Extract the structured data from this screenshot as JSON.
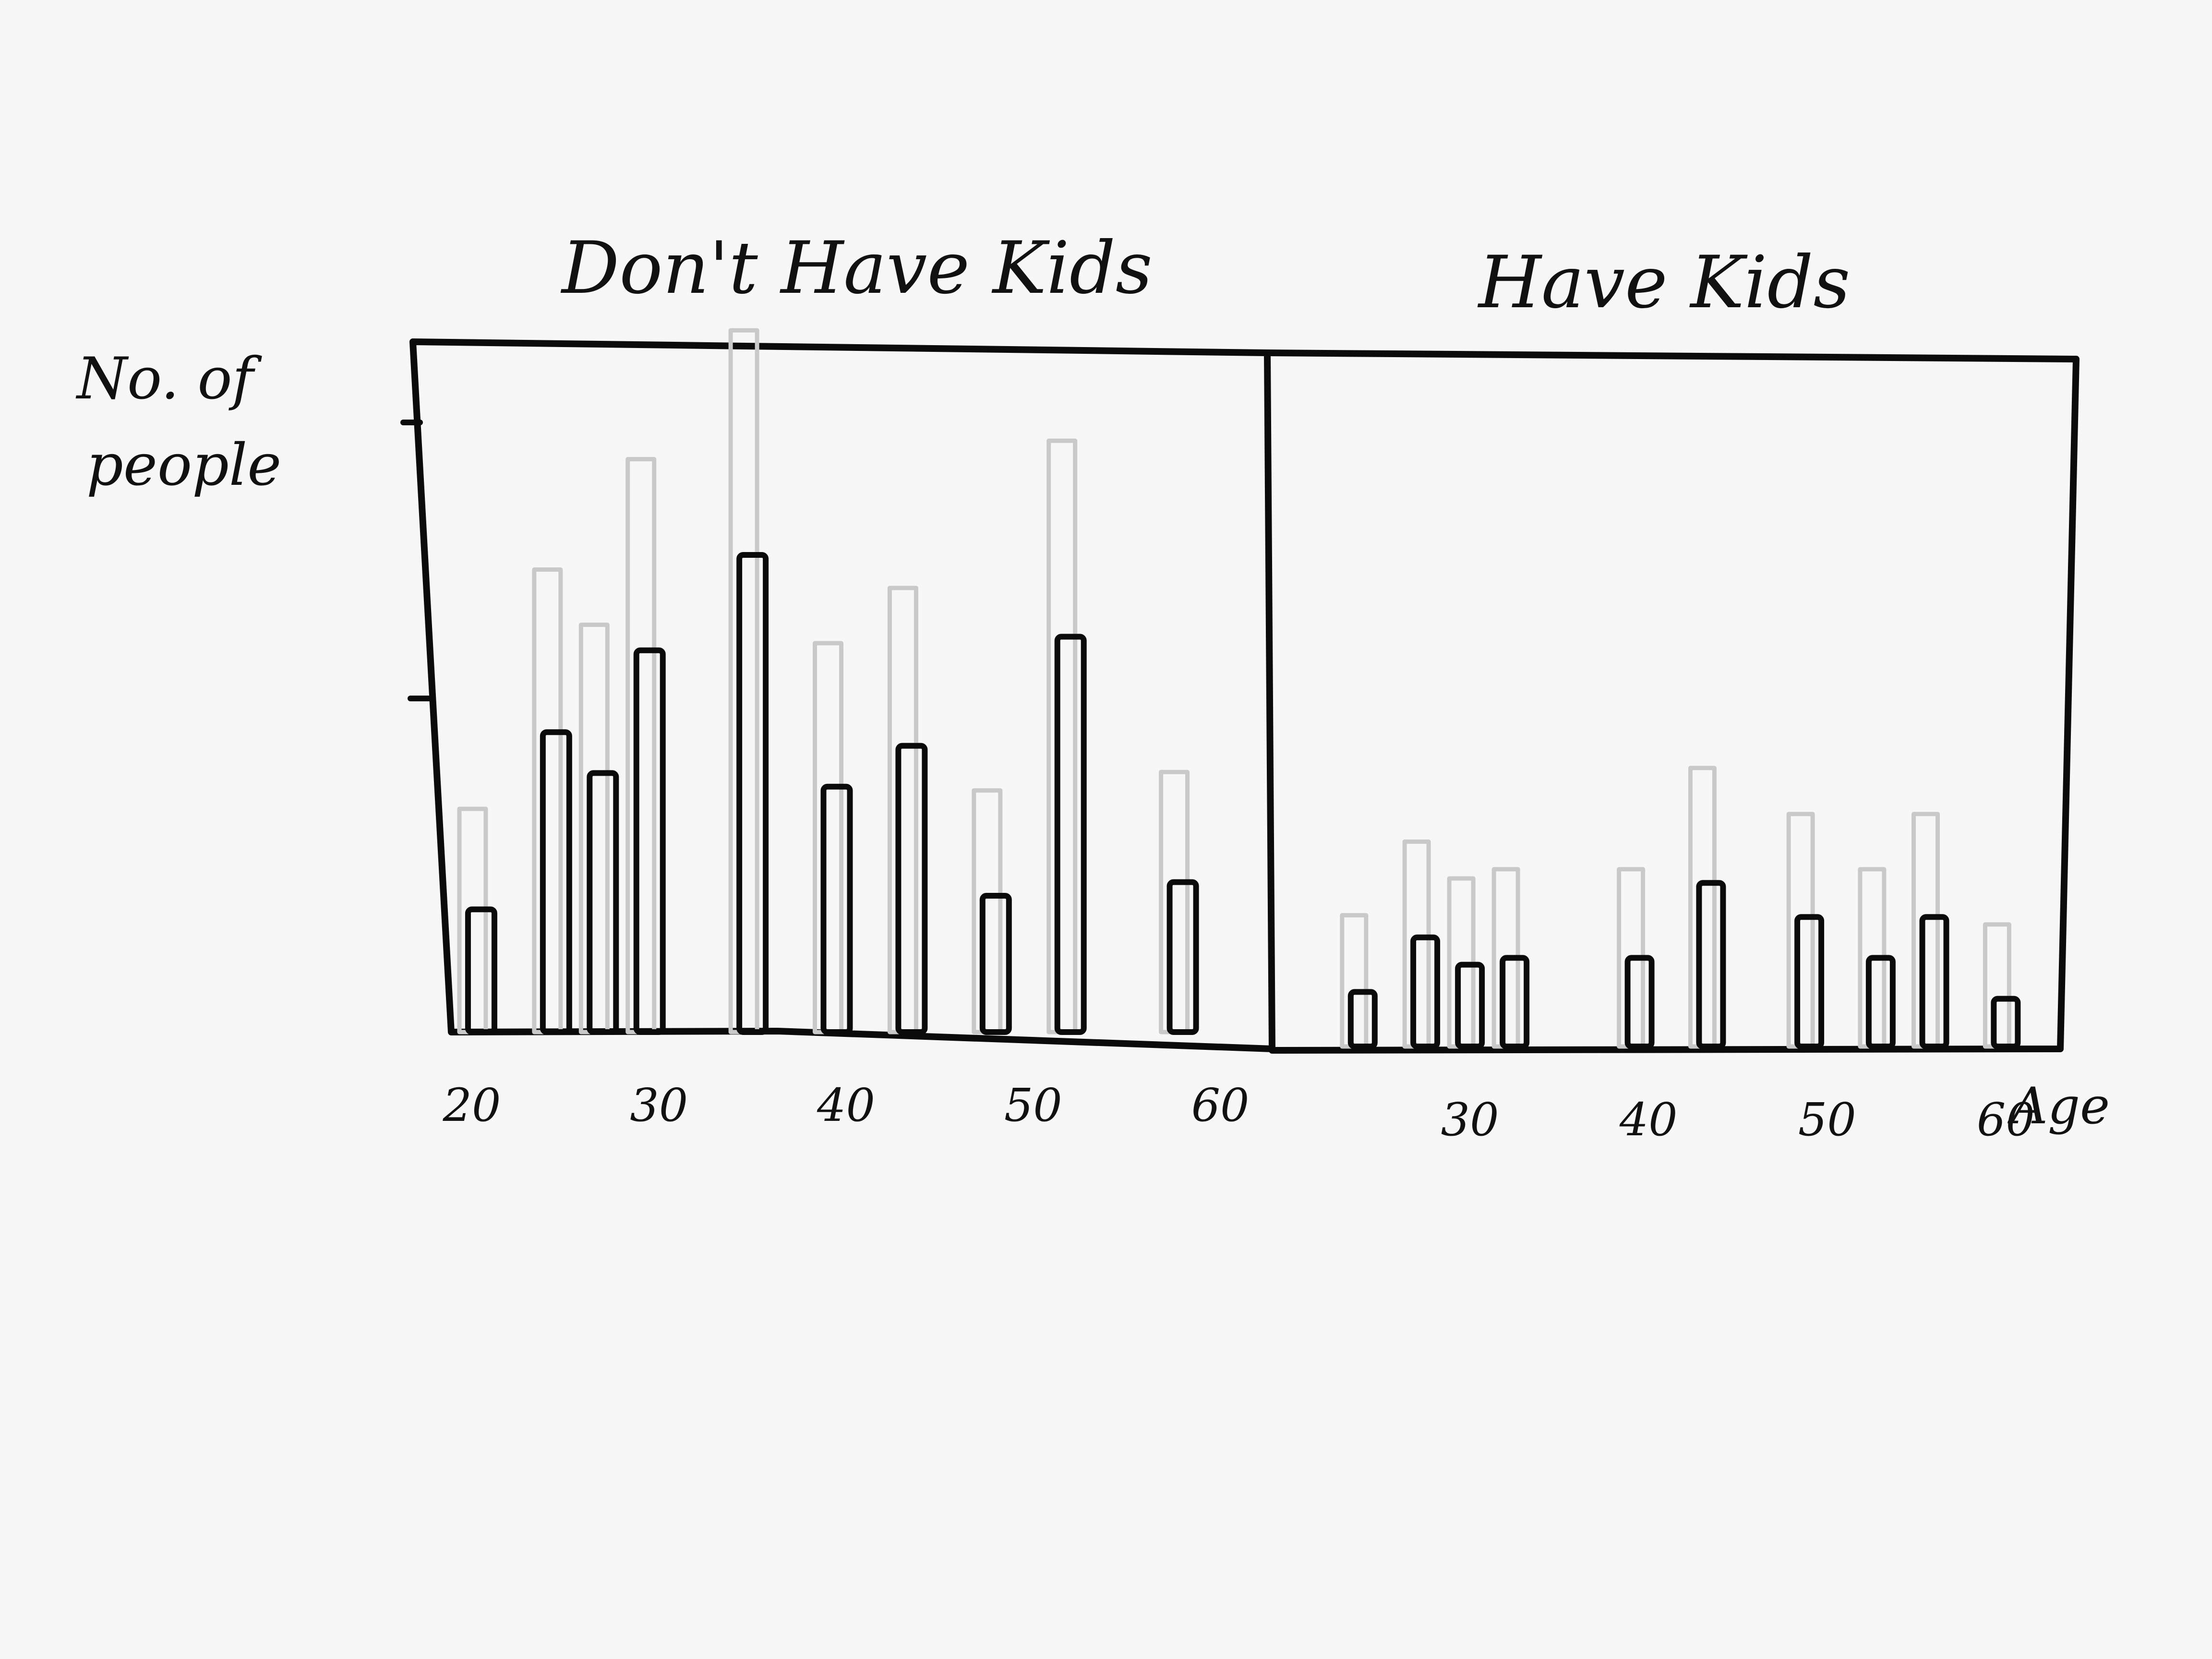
{
  "y_axis_label_line1": "No. of",
  "y_axis_label_line2": "people",
  "x_axis_label": "Age",
  "chart_data": [
    {
      "type": "bar",
      "title": "Don't Have Kids",
      "ylabel": "No. of people",
      "xlabel": "Age",
      "x_ticks": [
        20,
        30,
        40,
        50,
        60
      ],
      "xlim": [
        18,
        62
      ],
      "ylim": [
        0,
        100
      ],
      "grid": false,
      "x": [
        20.5,
        24.5,
        27,
        29.5,
        35,
        39.5,
        43.5,
        48,
        52,
        58
      ],
      "values": [
        18,
        44,
        38,
        56,
        70,
        36,
        42,
        20,
        58,
        22
      ]
    },
    {
      "type": "bar",
      "title": "Have Kids",
      "ylabel": "No. of people",
      "xlabel": "Age",
      "x_ticks": [
        30,
        40,
        50,
        60
      ],
      "xlim": [
        20,
        63
      ],
      "ylim": [
        0,
        100
      ],
      "grid": false,
      "x": [
        24,
        27.5,
        30,
        32.5,
        39.5,
        43.5,
        49,
        53,
        56,
        60
      ],
      "values": [
        8,
        16,
        12,
        13,
        13,
        24,
        19,
        13,
        19,
        7
      ]
    }
  ]
}
